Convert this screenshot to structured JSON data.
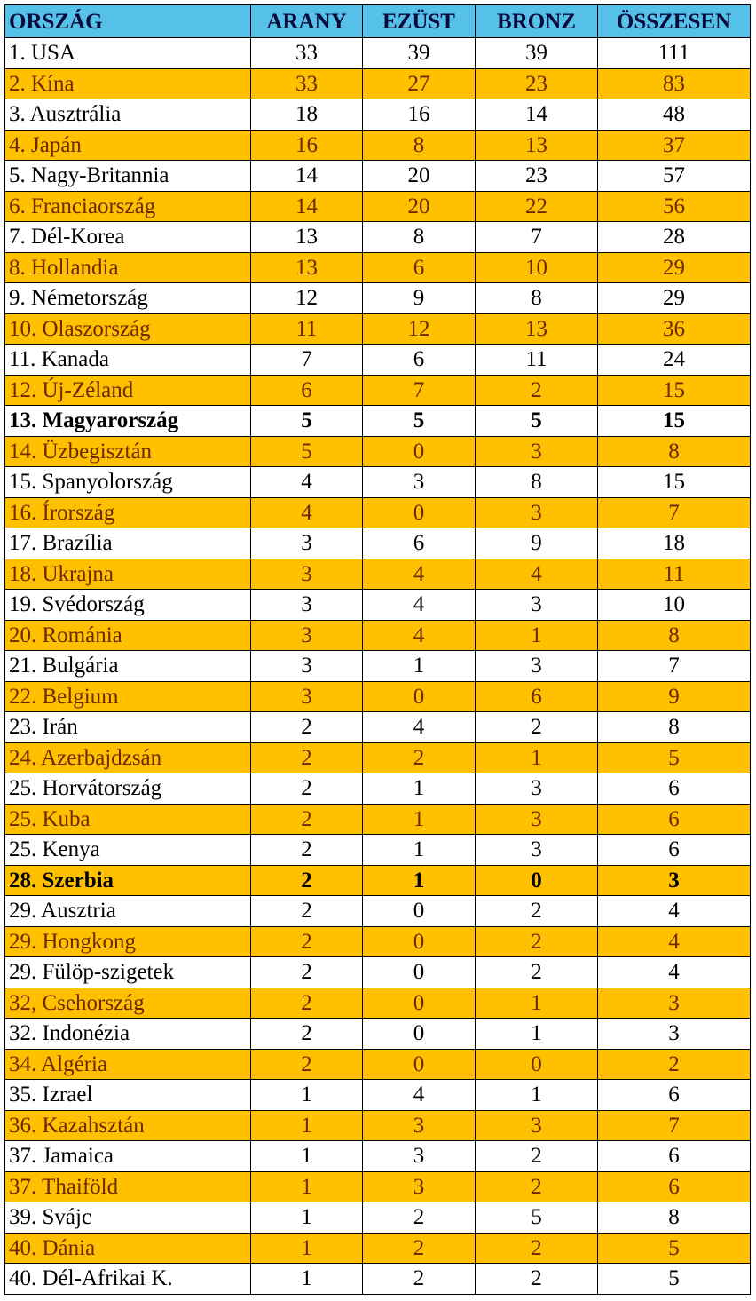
{
  "table": {
    "header": [
      "ORSZÁG",
      "ARANY",
      "EZÜST",
      "BRONZ",
      "ÖSSZESEN"
    ],
    "rows": [
      {
        "cells": [
          "1. USA",
          33,
          39,
          39,
          111
        ]
      },
      {
        "cells": [
          "2. Kína",
          33,
          27,
          23,
          83
        ]
      },
      {
        "cells": [
          "3. Ausztrália",
          18,
          16,
          14,
          48
        ]
      },
      {
        "cells": [
          "4. Japán",
          16,
          8,
          13,
          37
        ]
      },
      {
        "cells": [
          "5. Nagy-Britannia",
          14,
          20,
          23,
          57
        ]
      },
      {
        "cells": [
          "6. Franciaország",
          14,
          20,
          22,
          56
        ]
      },
      {
        "cells": [
          "7. Dél-Korea",
          13,
          8,
          7,
          28
        ]
      },
      {
        "cells": [
          "8. Hollandia",
          13,
          6,
          10,
          29
        ]
      },
      {
        "cells": [
          "9. Németország",
          12,
          9,
          8,
          29
        ]
      },
      {
        "cells": [
          "10. Olaszország",
          11,
          12,
          13,
          36
        ]
      },
      {
        "cells": [
          "11. Kanada",
          7,
          6,
          11,
          24
        ]
      },
      {
        "cells": [
          "12. Új-Zéland",
          6,
          7,
          2,
          15
        ]
      },
      {
        "cells": [
          "13. Magyarország",
          5,
          5,
          5,
          15
        ],
        "bold": true
      },
      {
        "cells": [
          "14. Üzbegisztán",
          5,
          0,
          3,
          8
        ]
      },
      {
        "cells": [
          "15. Spanyolország",
          4,
          3,
          8,
          15
        ]
      },
      {
        "cells": [
          "16. Írország",
          4,
          0,
          3,
          7
        ]
      },
      {
        "cells": [
          "17. Brazília",
          3,
          6,
          9,
          18
        ]
      },
      {
        "cells": [
          "18. Ukrajna",
          3,
          4,
          4,
          11
        ]
      },
      {
        "cells": [
          "19. Svédország",
          3,
          4,
          3,
          10
        ]
      },
      {
        "cells": [
          "20. Románia",
          3,
          4,
          1,
          8
        ]
      },
      {
        "cells": [
          "21. Bulgária",
          3,
          1,
          3,
          7
        ]
      },
      {
        "cells": [
          "22. Belgium",
          3,
          0,
          6,
          9
        ]
      },
      {
        "cells": [
          "23. Irán",
          2,
          4,
          2,
          8
        ]
      },
      {
        "cells": [
          "24. Azerbajdzsán",
          2,
          2,
          1,
          5
        ]
      },
      {
        "cells": [
          "25. Horvátország",
          2,
          1,
          3,
          6
        ]
      },
      {
        "cells": [
          "25. Kuba",
          2,
          1,
          3,
          6
        ]
      },
      {
        "cells": [
          "25. Kenya",
          2,
          1,
          3,
          6
        ]
      },
      {
        "cells": [
          "28. Szerbia",
          2,
          1,
          0,
          3
        ],
        "bold": true
      },
      {
        "cells": [
          "29. Ausztria",
          2,
          0,
          2,
          4
        ]
      },
      {
        "cells": [
          "29. Hongkong",
          2,
          0,
          2,
          4
        ]
      },
      {
        "cells": [
          "29. Fülöp-szigetek",
          2,
          0,
          2,
          4
        ]
      },
      {
        "cells": [
          "32, Csehország",
          2,
          0,
          1,
          3
        ]
      },
      {
        "cells": [
          "32. Indonézia",
          2,
          0,
          1,
          3
        ]
      },
      {
        "cells": [
          "34. Algéria",
          2,
          0,
          0,
          2
        ]
      },
      {
        "cells": [
          "35. Izrael",
          1,
          4,
          1,
          6
        ]
      },
      {
        "cells": [
          "36. Kazahsztán",
          1,
          3,
          3,
          7
        ]
      },
      {
        "cells": [
          "37. Jamaica",
          1,
          3,
          2,
          6
        ]
      },
      {
        "cells": [
          "37. Thaiföld",
          1,
          3,
          2,
          6
        ]
      },
      {
        "cells": [
          "39. Svájc",
          1,
          2,
          5,
          8
        ]
      },
      {
        "cells": [
          "40. Dánia",
          1,
          2,
          2,
          5
        ]
      },
      {
        "cells": [
          "40. Dél-Afrikai K.",
          1,
          2,
          2,
          5
        ]
      }
    ]
  }
}
